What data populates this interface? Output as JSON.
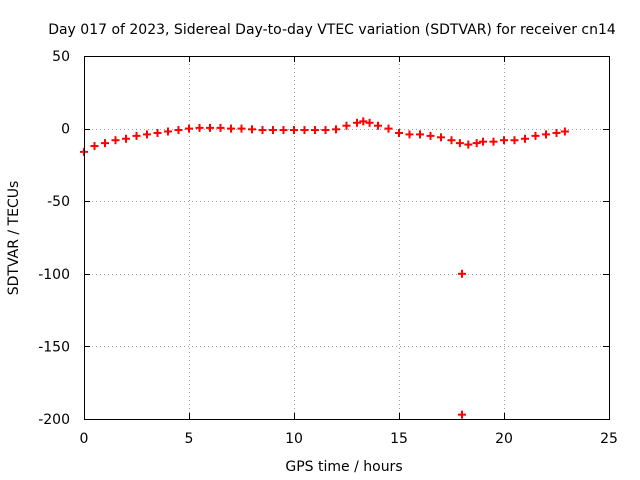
{
  "chart_data": {
    "type": "scatter",
    "title": "Day 017 of 2023, Sidereal Day-to-day VTEC variation (SDTVAR) for receiver cn14",
    "xlabel": "GPS time / hours",
    "ylabel": "SDTVAR / TECUs",
    "xlim": [
      0,
      25
    ],
    "ylim": [
      -200,
      50
    ],
    "x_ticks": [
      0,
      5,
      10,
      15,
      20,
      25
    ],
    "y_ticks": [
      50,
      0,
      -50,
      -100,
      -150,
      -200
    ],
    "grid": true,
    "marker": "plus",
    "color": "#ff0000",
    "series": [
      {
        "name": "SDTVAR",
        "x": [
          0.0,
          0.5,
          1.0,
          1.5,
          2.0,
          2.5,
          3.0,
          3.5,
          4.0,
          4.5,
          5.0,
          5.5,
          6.0,
          6.5,
          7.0,
          7.5,
          8.0,
          8.5,
          9.0,
          9.5,
          10.0,
          10.5,
          11.0,
          11.5,
          12.0,
          12.5,
          13.0,
          13.3,
          13.6,
          14.0,
          14.5,
          15.0,
          15.5,
          16.0,
          16.5,
          17.0,
          17.5,
          17.9,
          18.3,
          18.7,
          19.0,
          19.5,
          20.0,
          20.5,
          21.0,
          21.5,
          22.0,
          22.5,
          22.9,
          18.0,
          18.0
        ],
        "y": [
          -16,
          -12,
          -10,
          -8,
          -7,
          -5,
          -4,
          -3,
          -2,
          -1,
          0,
          0.5,
          0.5,
          0.5,
          0,
          0,
          -0.5,
          -1,
          -1,
          -1,
          -1,
          -1,
          -1,
          -1,
          -0.5,
          2,
          4,
          5,
          4,
          2,
          0,
          -3,
          -4,
          -4,
          -5,
          -6,
          -8,
          -10,
          -11,
          -10,
          -9,
          -9,
          -8,
          -8,
          -7,
          -5,
          -4,
          -3,
          -2,
          -100,
          -197
        ]
      }
    ]
  }
}
